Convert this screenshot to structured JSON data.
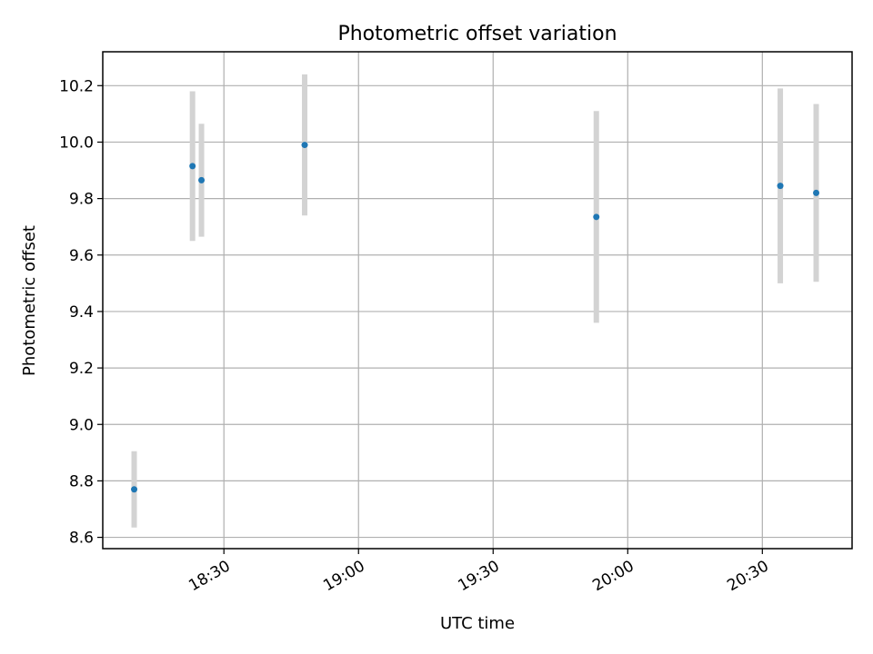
{
  "chart_data": {
    "type": "scatter",
    "title": "Photometric offset variation",
    "xlabel": "UTC time",
    "ylabel": "Photometric offset",
    "ylim": [
      8.56,
      10.32
    ],
    "xlim": [
      "18:03",
      "20:50"
    ],
    "xticks": [
      "18:30",
      "19:00",
      "19:30",
      "20:00",
      "20:30"
    ],
    "yticks": [
      "8.6",
      "8.8",
      "9.0",
      "9.2",
      "9.4",
      "9.6",
      "9.8",
      "10.0",
      "10.2"
    ],
    "grid": true,
    "colors": {
      "points": "#1f77b4",
      "errorbars": "#d3d3d3",
      "grid": "#b0b0b0"
    },
    "series": [
      {
        "points": [
          {
            "x": "18:10",
            "y": 8.77,
            "err": 0.135
          },
          {
            "x": "18:23",
            "y": 9.915,
            "err": 0.265
          },
          {
            "x": "18:25",
            "y": 9.865,
            "err": 0.2
          },
          {
            "x": "18:48",
            "y": 9.99,
            "err": 0.25
          },
          {
            "x": "19:53",
            "y": 9.735,
            "err": 0.375
          },
          {
            "x": "20:34",
            "y": 9.845,
            "err": 0.345
          },
          {
            "x": "20:42",
            "y": 9.82,
            "err": 0.315
          }
        ]
      }
    ]
  }
}
